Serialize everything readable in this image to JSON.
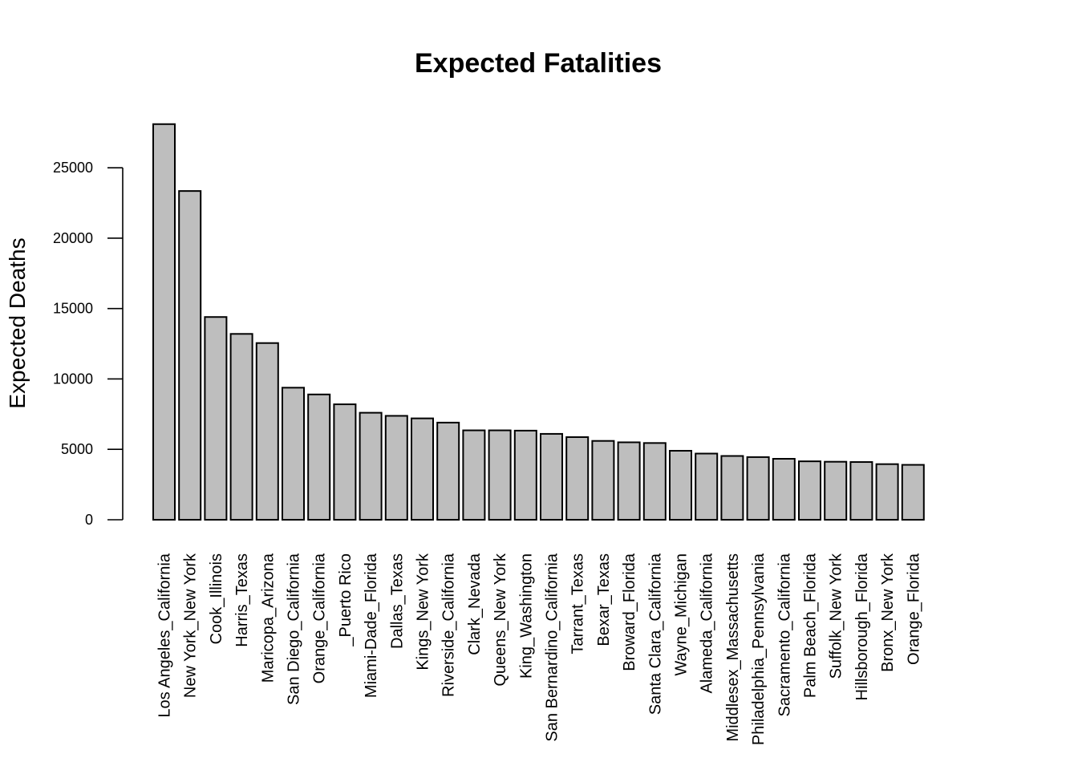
{
  "chart_data": {
    "type": "bar",
    "title": "Expected Fatalities",
    "xlabel": "",
    "ylabel": "Expected Deaths",
    "ylim": [
      0,
      28200
    ],
    "yticks": [
      0,
      5000,
      10000,
      15000,
      20000,
      25000
    ],
    "grid": false,
    "legend": "none",
    "bar_color": "#bebebe",
    "categories": [
      "Los Angeles_California",
      "New York_New York",
      "Cook_Illinois",
      "Harris_Texas",
      "Maricopa_Arizona",
      "San Diego_California",
      "Orange_California",
      "_Puerto Rico",
      "Miami-Dade_Florida",
      "Dallas_Texas",
      "Kings_New York",
      "Riverside_California",
      "Clark_Nevada",
      "Queens_New York",
      "King_Washington",
      "San Bernardino_California",
      "Tarrant_Texas",
      "Bexar_Texas",
      "Broward_Florida",
      "Santa Clara_California",
      "Wayne_Michigan",
      "Alameda_California",
      "Middlesex_Massachusetts",
      "Philadelphia_Pennsylvania",
      "Sacramento_California",
      "Palm Beach_Florida",
      "Suffolk_New York",
      "Hillsborough_Florida",
      "Bronx_New York",
      "Orange_Florida"
    ],
    "values": [
      28100,
      23350,
      14400,
      13200,
      12550,
      9380,
      8900,
      8200,
      7600,
      7380,
      7200,
      6900,
      6350,
      6350,
      6330,
      6100,
      5870,
      5600,
      5500,
      5450,
      4900,
      4700,
      4530,
      4450,
      4330,
      4150,
      4120,
      4100,
      3950,
      3900
    ]
  }
}
